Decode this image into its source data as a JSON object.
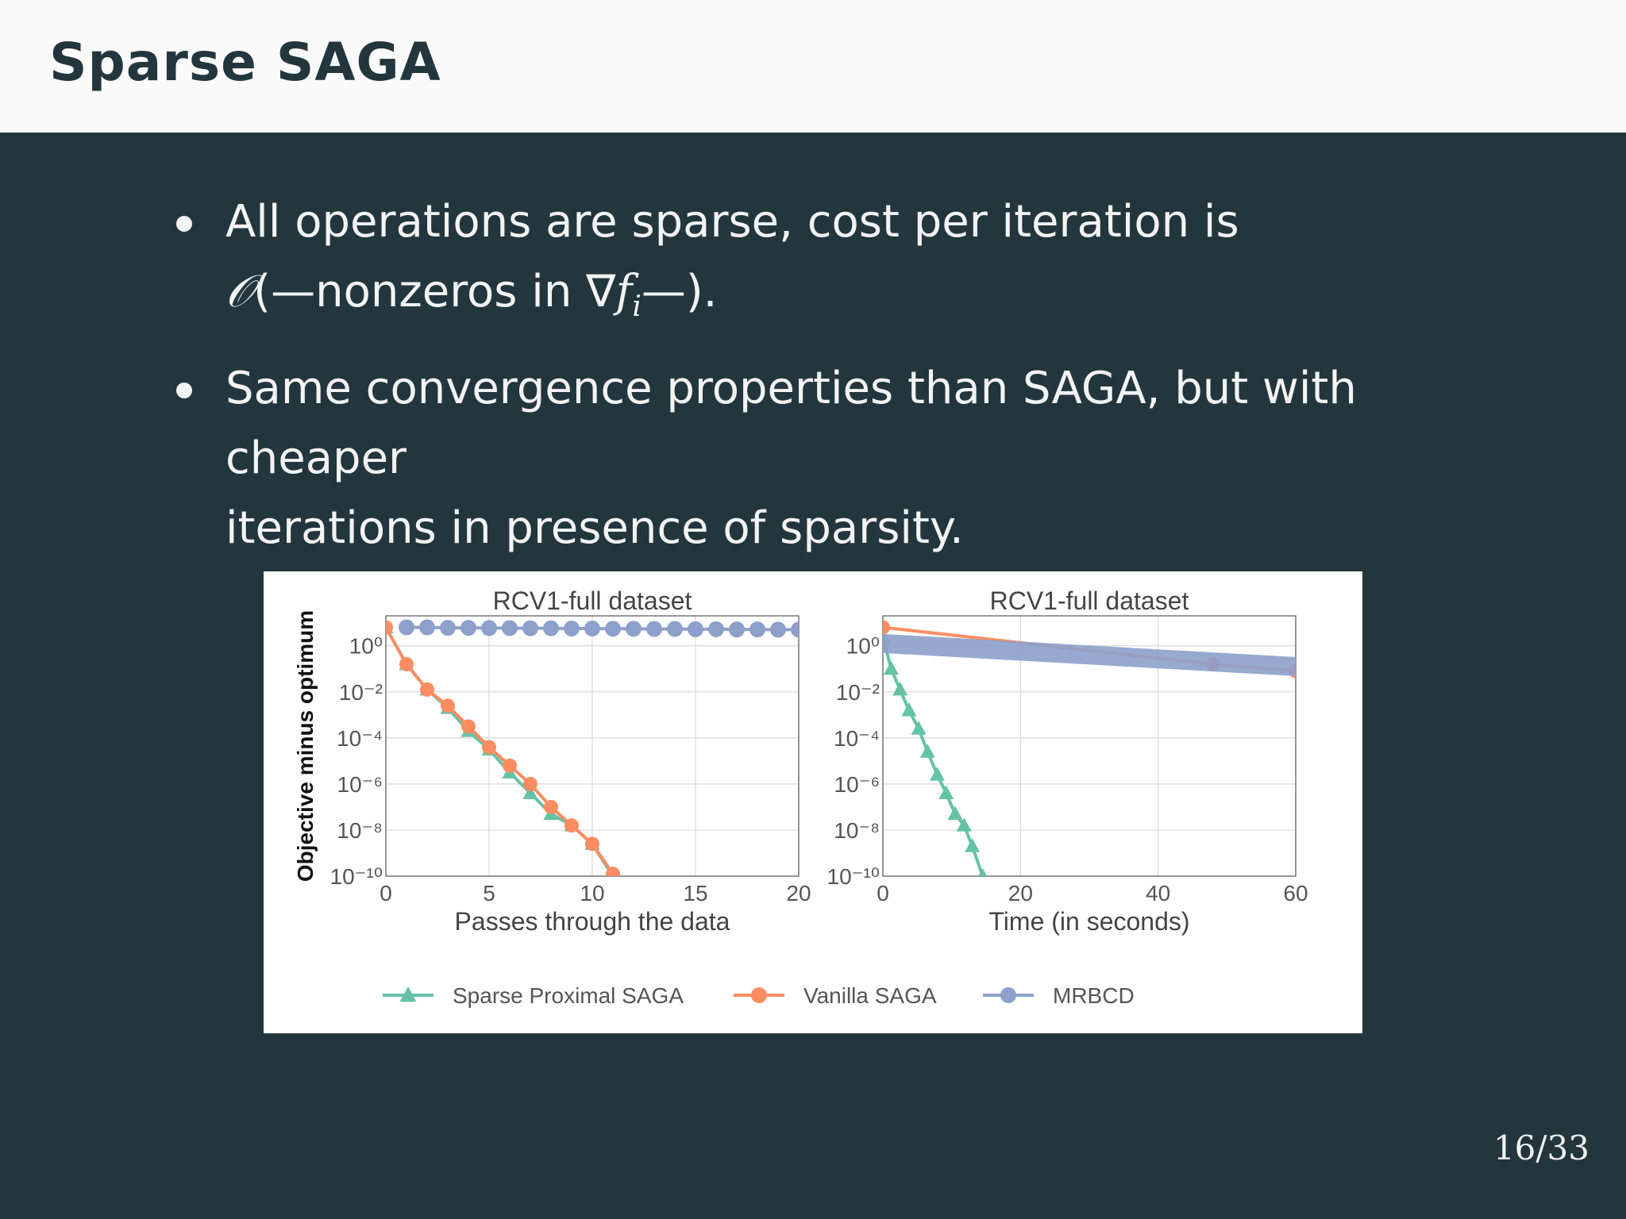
{
  "slide": {
    "title": "Sparse SAGA",
    "page": "16/33",
    "bullets": [
      {
        "lines": [
          "All operations are sparse, cost per iteration is"
        ],
        "math_prefix": "𝒪",
        "math_text": "(—nonzeros in ∇",
        "math_f": "f",
        "math_i": "i",
        "math_suffix": "—)."
      },
      {
        "lines": [
          "Same convergence properties than SAGA, but with cheaper",
          "iterations in presence of sparsity."
        ]
      }
    ]
  },
  "colors": {
    "header_bg": "#fafafa",
    "slide_bg": "#23363d",
    "sparse_proximal_saga": "#66c2a5",
    "vanilla_saga": "#fc8d62",
    "mrbcd": "#8da0cb"
  },
  "chart_data": [
    {
      "type": "line",
      "title": "RCV1-full dataset",
      "xlabel": "Passes through the data",
      "ylabel": "Objective minus optimum",
      "y_scale": "log",
      "xlim": [
        0,
        20
      ],
      "ylim_exp": [
        -10,
        1.3
      ],
      "xticks": [
        0,
        5,
        10,
        15,
        20
      ],
      "yticks_exp": [
        0,
        -2,
        -4,
        -6,
        -8,
        -10
      ],
      "grid": true,
      "series": [
        {
          "name": "Sparse Proximal SAGA",
          "marker": "triangle",
          "x": [
            0,
            1,
            2,
            3,
            4,
            5,
            6,
            7,
            8,
            9,
            10,
            11
          ],
          "y_exp": [
            0.8,
            -0.8,
            -1.9,
            -2.7,
            -3.7,
            -4.5,
            -5.5,
            -6.4,
            -7.3,
            -7.8,
            -8.6,
            -10.0
          ]
        },
        {
          "name": "Vanilla SAGA",
          "marker": "circle",
          "x": [
            0,
            1,
            2,
            3,
            4,
            5,
            6,
            7,
            8,
            9,
            10,
            11,
            12
          ],
          "y_exp": [
            0.8,
            -0.8,
            -1.9,
            -2.6,
            -3.5,
            -4.4,
            -5.2,
            -6.0,
            -7.0,
            -7.8,
            -8.6,
            -9.9,
            -10.5
          ]
        },
        {
          "name": "MRBCD",
          "marker": "circle",
          "x": [
            1,
            2,
            3,
            4,
            5,
            6,
            7,
            8,
            9,
            10,
            11,
            12,
            13,
            14,
            15,
            16,
            17,
            18,
            19,
            20
          ],
          "y_exp": [
            0.8,
            0.8,
            0.78,
            0.78,
            0.77,
            0.77,
            0.76,
            0.76,
            0.75,
            0.75,
            0.74,
            0.74,
            0.73,
            0.73,
            0.72,
            0.72,
            0.71,
            0.71,
            0.7,
            0.7
          ]
        }
      ]
    },
    {
      "type": "line",
      "title": "RCV1-full dataset",
      "xlabel": "Time (in seconds)",
      "ylabel": "",
      "y_scale": "log",
      "xlim": [
        0,
        60
      ],
      "ylim_exp": [
        -10,
        1.3
      ],
      "xticks": [
        0,
        20,
        40,
        60
      ],
      "yticks_exp": [
        0,
        -2,
        -4,
        -6,
        -8,
        -10
      ],
      "grid": true,
      "series": [
        {
          "name": "Sparse Proximal SAGA",
          "marker": "triangle",
          "x": [
            0,
            1.2,
            2.5,
            3.8,
            5.2,
            6.5,
            7.9,
            9.2,
            10.5,
            11.8,
            13.0,
            14.5
          ],
          "y_exp": [
            0.4,
            -1.0,
            -1.9,
            -2.8,
            -3.6,
            -4.6,
            -5.6,
            -6.4,
            -7.3,
            -7.8,
            -8.7,
            -10.0
          ]
        },
        {
          "name": "Vanilla SAGA",
          "marker": "circle",
          "x": [
            0,
            48,
            60
          ],
          "y_exp": [
            0.8,
            -0.8,
            -1.1
          ]
        },
        {
          "name": "MRBCD",
          "marker": "band",
          "x": [
            0,
            60
          ],
          "y_exp": [
            0.1,
            -0.9
          ]
        }
      ]
    }
  ],
  "legend": [
    {
      "label": "Sparse Proximal SAGA",
      "marker": "triangle"
    },
    {
      "label": "Vanilla SAGA",
      "marker": "circle"
    },
    {
      "label": "MRBCD",
      "marker": "circle"
    }
  ]
}
